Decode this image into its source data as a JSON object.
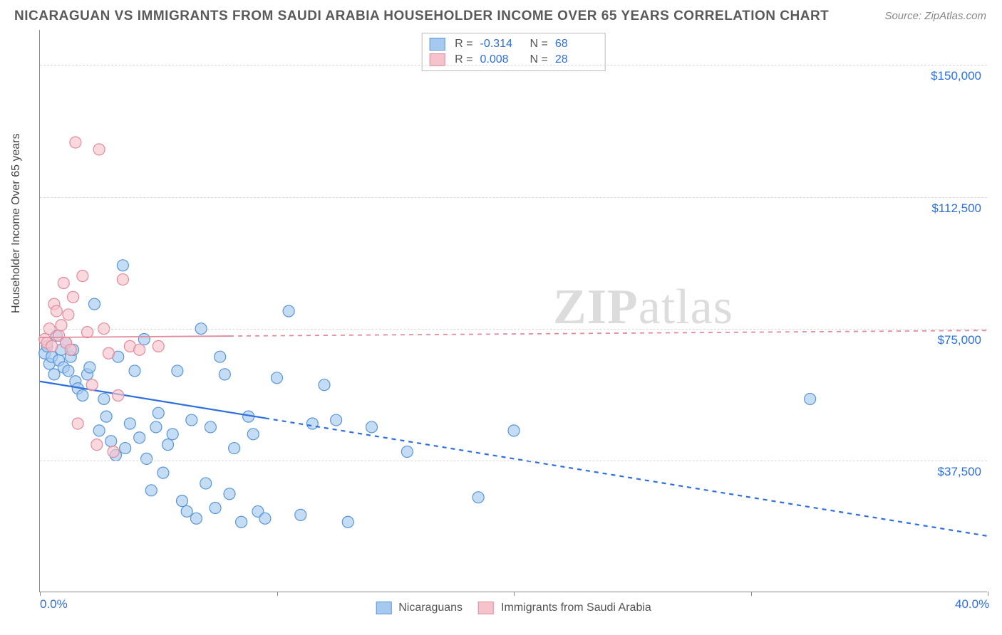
{
  "title": "NICARAGUAN VS IMMIGRANTS FROM SAUDI ARABIA HOUSEHOLDER INCOME OVER 65 YEARS CORRELATION CHART",
  "source": "Source: ZipAtlas.com",
  "watermark_zip": "ZIP",
  "watermark_atlas": "atlas",
  "ylabel": "Householder Income Over 65 years",
  "chart": {
    "type": "scatter",
    "background_color": "#ffffff",
    "grid_color": "#d8d8d8",
    "axis_color": "#888888",
    "xlim": [
      0,
      40
    ],
    "ylim": [
      0,
      160000
    ],
    "x_tick_positions": [
      0,
      10,
      20,
      30,
      40
    ],
    "x_tick_labels_shown": {
      "0": "0.0%",
      "40": "40.0%"
    },
    "y_tick_positions": [
      37500,
      75000,
      112500,
      150000
    ],
    "y_tick_labels": [
      "$37,500",
      "$75,000",
      "$112,500",
      "$150,000"
    ],
    "marker_radius": 8,
    "marker_stroke_width": 1.2,
    "series": [
      {
        "name": "Nicaraguans",
        "fill_color": "#a6c9f0",
        "stroke_color": "#5a96d6",
        "R": "-0.314",
        "N": "68",
        "trend": {
          "x0": 0,
          "y0": 60000,
          "x1": 40,
          "y1": 16000,
          "solid_until_x": 9.5,
          "color": "#2d6fe0",
          "width": 2.2
        },
        "points": [
          [
            0.2,
            68000
          ],
          [
            0.3,
            70000
          ],
          [
            0.4,
            65000
          ],
          [
            0.5,
            67000
          ],
          [
            0.6,
            62000
          ],
          [
            0.7,
            73000
          ],
          [
            0.8,
            66000
          ],
          [
            0.9,
            69000
          ],
          [
            1.0,
            64000
          ],
          [
            1.1,
            71000
          ],
          [
            1.2,
            63000
          ],
          [
            1.3,
            67000
          ],
          [
            1.4,
            69000
          ],
          [
            1.5,
            60000
          ],
          [
            1.6,
            58000
          ],
          [
            1.8,
            56000
          ],
          [
            2.0,
            62000
          ],
          [
            2.1,
            64000
          ],
          [
            2.3,
            82000
          ],
          [
            2.5,
            46000
          ],
          [
            2.7,
            55000
          ],
          [
            2.8,
            50000
          ],
          [
            3.0,
            43000
          ],
          [
            3.2,
            39000
          ],
          [
            3.3,
            67000
          ],
          [
            3.5,
            93000
          ],
          [
            3.6,
            41000
          ],
          [
            3.8,
            48000
          ],
          [
            4.0,
            63000
          ],
          [
            4.2,
            44000
          ],
          [
            4.4,
            72000
          ],
          [
            4.5,
            38000
          ],
          [
            4.7,
            29000
          ],
          [
            4.9,
            47000
          ],
          [
            5.0,
            51000
          ],
          [
            5.2,
            34000
          ],
          [
            5.4,
            42000
          ],
          [
            5.6,
            45000
          ],
          [
            5.8,
            63000
          ],
          [
            6.0,
            26000
          ],
          [
            6.2,
            23000
          ],
          [
            6.4,
            49000
          ],
          [
            6.6,
            21000
          ],
          [
            6.8,
            75000
          ],
          [
            7.0,
            31000
          ],
          [
            7.2,
            47000
          ],
          [
            7.4,
            24000
          ],
          [
            7.6,
            67000
          ],
          [
            7.8,
            62000
          ],
          [
            8.0,
            28000
          ],
          [
            8.2,
            41000
          ],
          [
            8.5,
            20000
          ],
          [
            8.8,
            50000
          ],
          [
            9.0,
            45000
          ],
          [
            9.2,
            23000
          ],
          [
            9.5,
            21000
          ],
          [
            10.0,
            61000
          ],
          [
            10.5,
            80000
          ],
          [
            11.0,
            22000
          ],
          [
            11.5,
            48000
          ],
          [
            12.0,
            59000
          ],
          [
            12.5,
            49000
          ],
          [
            13.0,
            20000
          ],
          [
            14.0,
            47000
          ],
          [
            15.5,
            40000
          ],
          [
            18.5,
            27000
          ],
          [
            20.0,
            46000
          ],
          [
            32.5,
            55000
          ]
        ]
      },
      {
        "name": "Immigrants from Saudi Arabia",
        "fill_color": "#f6c3cd",
        "stroke_color": "#e28b9d",
        "R": "0.008",
        "N": "28",
        "trend": {
          "x0": 0,
          "y0": 72500,
          "x1": 40,
          "y1": 74500,
          "solid_until_x": 8.0,
          "color": "#e28b9d",
          "width": 1.8
        },
        "points": [
          [
            0.2,
            72000
          ],
          [
            0.3,
            71000
          ],
          [
            0.4,
            75000
          ],
          [
            0.5,
            70000
          ],
          [
            0.6,
            82000
          ],
          [
            0.7,
            80000
          ],
          [
            0.8,
            73000
          ],
          [
            0.9,
            76000
          ],
          [
            1.0,
            88000
          ],
          [
            1.1,
            71000
          ],
          [
            1.2,
            79000
          ],
          [
            1.3,
            69000
          ],
          [
            1.4,
            84000
          ],
          [
            1.5,
            128000
          ],
          [
            1.6,
            48000
          ],
          [
            1.8,
            90000
          ],
          [
            2.0,
            74000
          ],
          [
            2.2,
            59000
          ],
          [
            2.4,
            42000
          ],
          [
            2.5,
            126000
          ],
          [
            2.7,
            75000
          ],
          [
            2.9,
            68000
          ],
          [
            3.1,
            40000
          ],
          [
            3.3,
            56000
          ],
          [
            3.5,
            89000
          ],
          [
            3.8,
            70000
          ],
          [
            4.2,
            69000
          ],
          [
            5.0,
            70000
          ]
        ]
      }
    ],
    "legend_top": {
      "rows": [
        {
          "swatch_fill": "#a6c9f0",
          "swatch_stroke": "#5a96d6",
          "R_label": "R =",
          "R": "-0.314",
          "N_label": "N =",
          "N": "68"
        },
        {
          "swatch_fill": "#f6c3cd",
          "swatch_stroke": "#e28b9d",
          "R_label": "R =",
          "R": "0.008",
          "N_label": "N =",
          "N": "28"
        }
      ]
    },
    "legend_bottom": [
      {
        "swatch_fill": "#a6c9f0",
        "swatch_stroke": "#5a96d6",
        "label": "Nicaraguans"
      },
      {
        "swatch_fill": "#f6c3cd",
        "swatch_stroke": "#e28b9d",
        "label": "Immigrants from Saudi Arabia"
      }
    ]
  }
}
